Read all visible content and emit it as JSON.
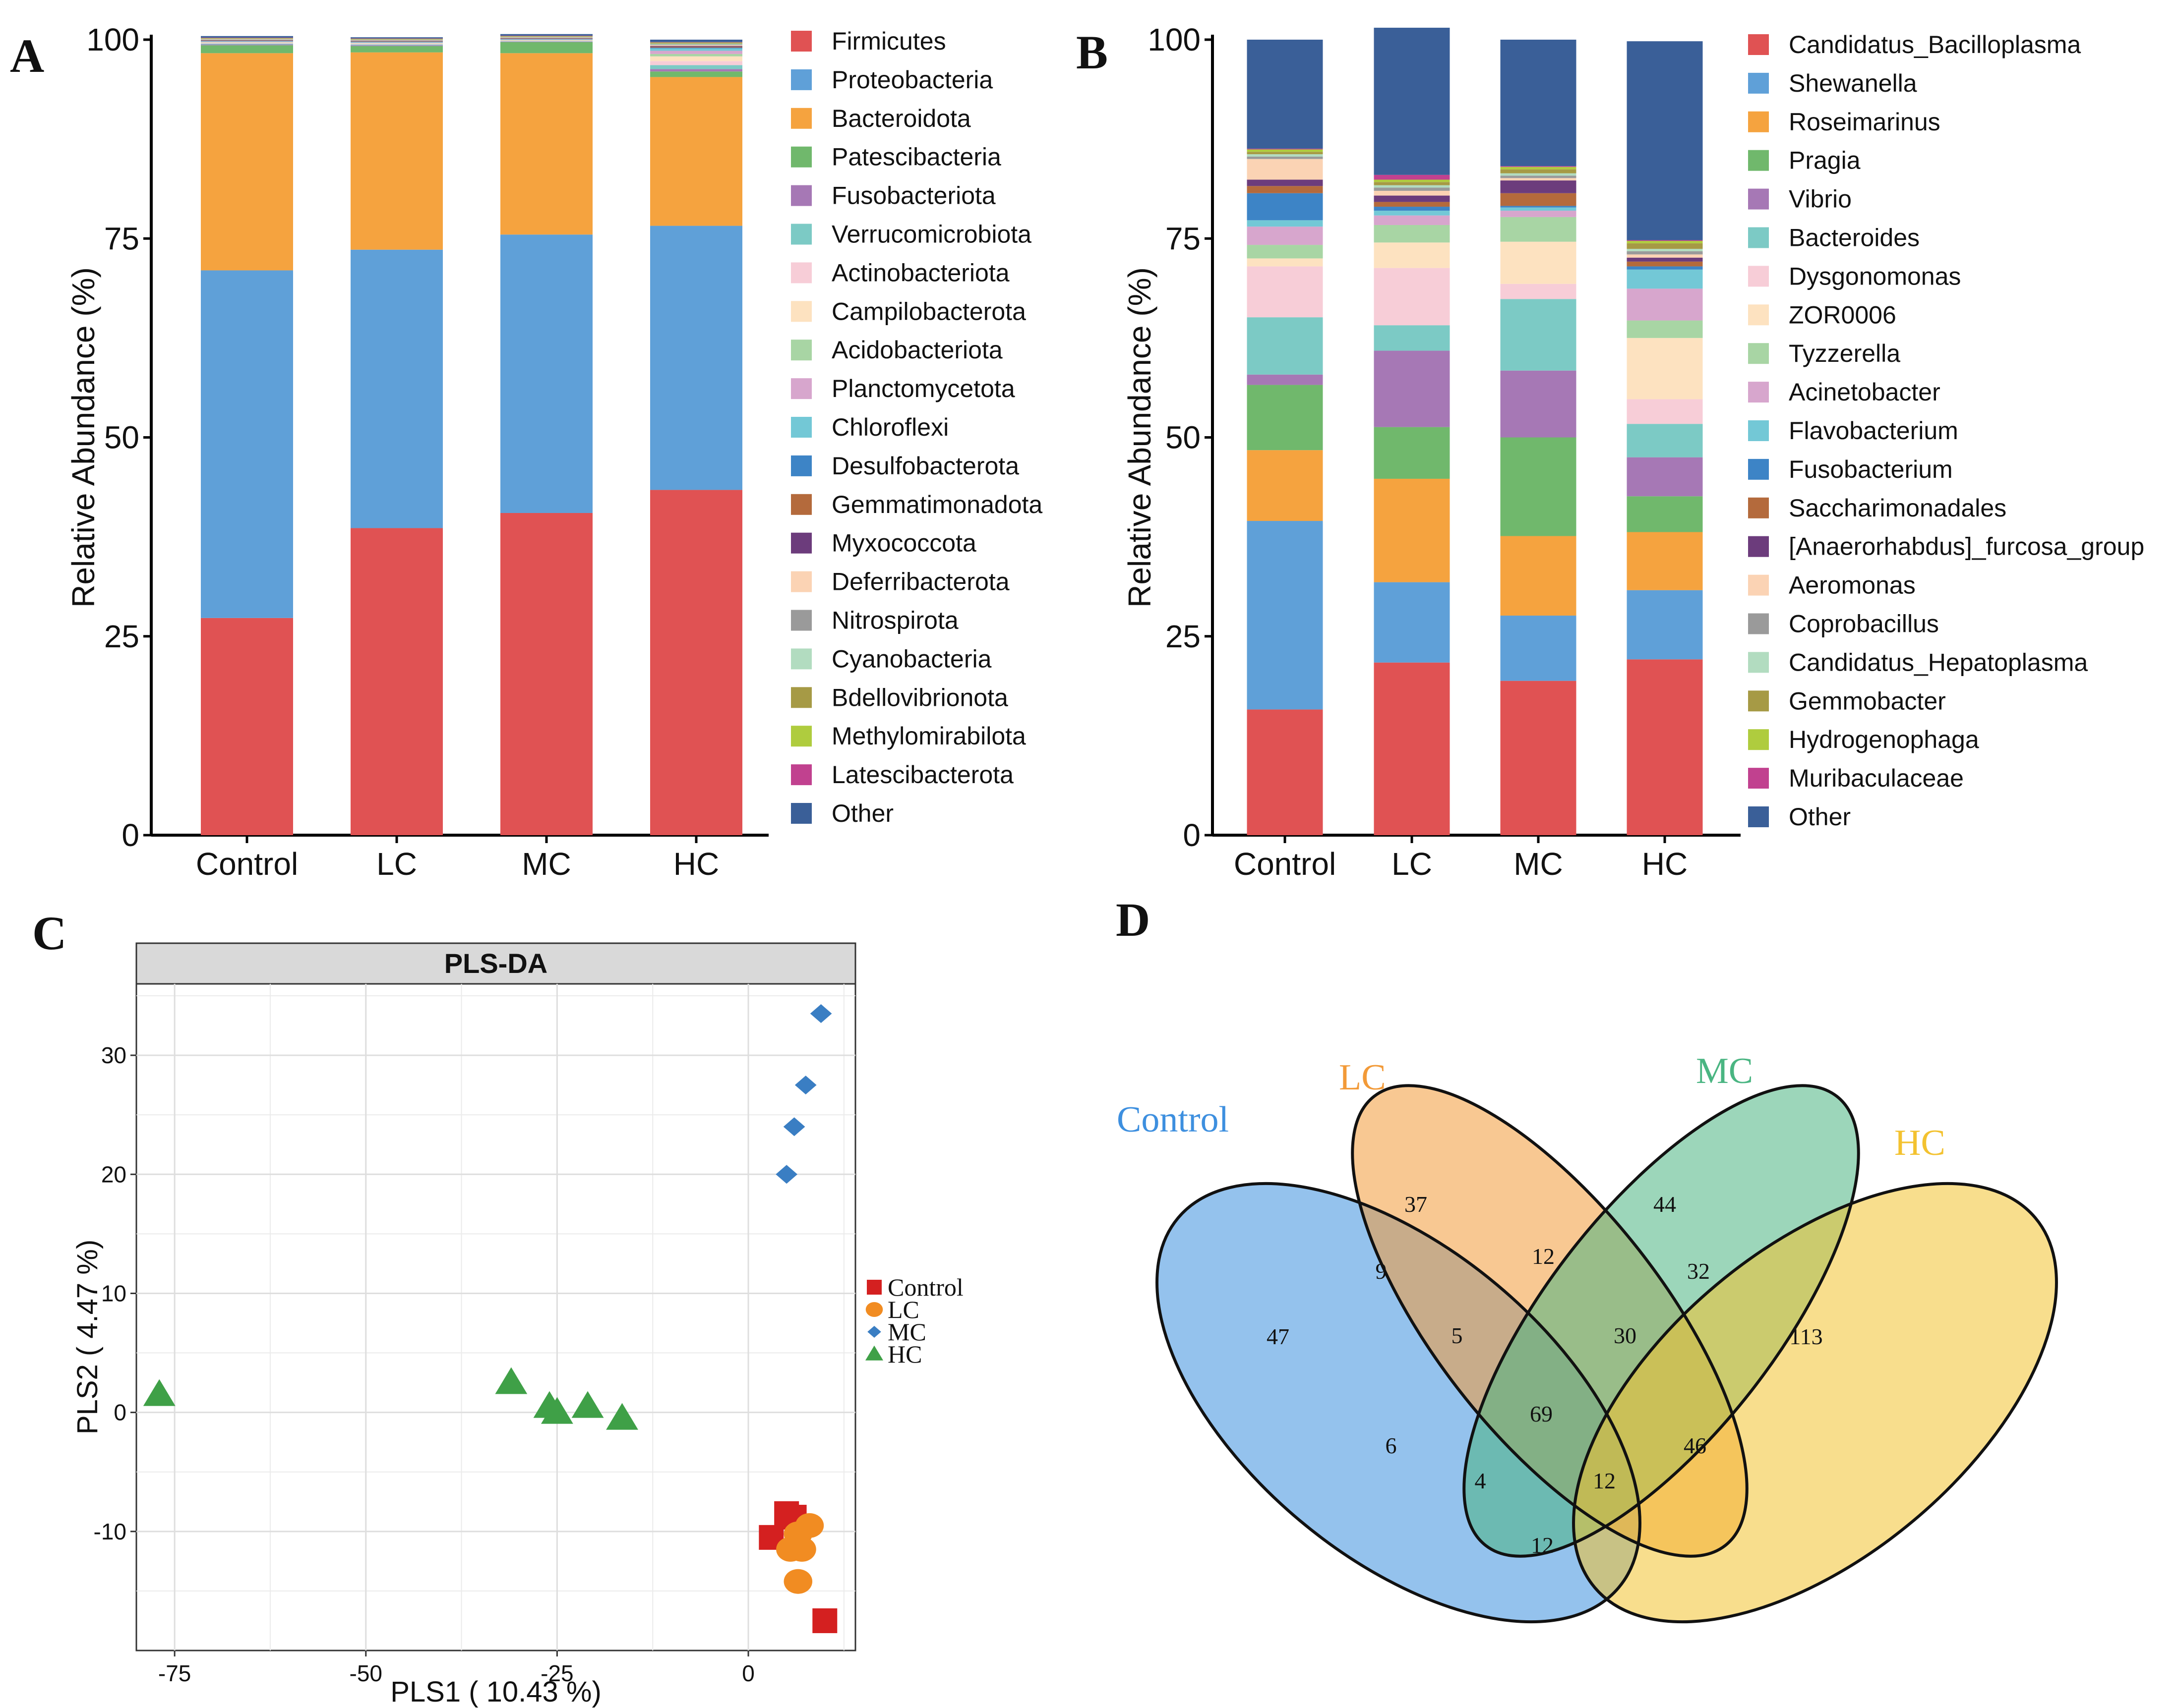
{
  "panels": {
    "A": {
      "letter": "A"
    },
    "B": {
      "letter": "B"
    },
    "C": {
      "letter": "C"
    },
    "D": {
      "letter": "D"
    }
  },
  "colors": {
    "palette": [
      "#E05253",
      "#5FA0D8",
      "#F5A33F",
      "#70B86C",
      "#A678B5",
      "#7CCAC5",
      "#F7CDD7",
      "#FDE2C0",
      "#A8D5A4",
      "#D7A6CD",
      "#73C8D6",
      "#3D84C6",
      "#B46A3C",
      "#6C3C7C",
      "#FBD3B4",
      "#9A9A9A",
      "#B2DCC0",
      "#A69A45",
      "#AFCC3E",
      "#C1418F",
      "#3A5F98"
    ],
    "pls": {
      "Control": "#D42020",
      "LC": "#F18C22",
      "MC": "#3A7EC3",
      "HC": "#3FA047"
    },
    "venn": {
      "Control": "#3D8FDF",
      "LC": "#F29A38",
      "MC": "#4AB582",
      "HC": "#F3C230"
    }
  },
  "chart_data": [
    {
      "id": "A",
      "type": "bar",
      "stacked": true,
      "ylabel": "Relative Abundance (%)",
      "xlabel": "",
      "ylim": [
        0,
        100
      ],
      "yticks": [
        0,
        25,
        50,
        75,
        100
      ],
      "categories": [
        "Control",
        "LC",
        "MC",
        "HC"
      ],
      "series": [
        {
          "name": "Firmicutes",
          "values": [
            27.3,
            38.6,
            40.5,
            43.4
          ]
        },
        {
          "name": "Proteobacteria",
          "values": [
            43.7,
            35.0,
            35.0,
            33.2
          ]
        },
        {
          "name": "Bacteroidota",
          "values": [
            27.3,
            24.8,
            22.8,
            18.7
          ]
        },
        {
          "name": "Patescibacteria",
          "values": [
            1.0,
            0.8,
            1.4,
            0.7
          ]
        },
        {
          "name": "Fusobacteriota",
          "values": [
            0.1,
            0.1,
            0.05,
            0.3
          ]
        },
        {
          "name": "Verrucomicrobiota",
          "values": [
            0.1,
            0.1,
            0.05,
            0.5
          ]
        },
        {
          "name": "Actinobacteriota",
          "values": [
            0.1,
            0.1,
            0.05,
            0.5
          ]
        },
        {
          "name": "Campilobacterota",
          "values": [
            0.05,
            0.05,
            0.05,
            0.6
          ]
        },
        {
          "name": "Acidobacteriota",
          "values": [
            0.05,
            0.05,
            0.05,
            0.3
          ]
        },
        {
          "name": "Planctomycetota",
          "values": [
            0.05,
            0.05,
            0.05,
            0.4
          ]
        },
        {
          "name": "Chloroflexi",
          "values": [
            0.05,
            0.05,
            0.05,
            0.3
          ]
        },
        {
          "name": "Desulfobacterota",
          "values": [
            0.05,
            0.05,
            0.05,
            0.1
          ]
        },
        {
          "name": "Gemmatimonadota",
          "values": [
            0.05,
            0.05,
            0.05,
            0.1
          ]
        },
        {
          "name": "Myxococcota",
          "values": [
            0.05,
            0.05,
            0.05,
            0.1
          ]
        },
        {
          "name": "Deferribacterota",
          "values": [
            0.05,
            0.05,
            0.05,
            0.1
          ]
        },
        {
          "name": "Nitrospirota",
          "values": [
            0.05,
            0.05,
            0.05,
            0.1
          ]
        },
        {
          "name": "Cyanobacteria",
          "values": [
            0.05,
            0.05,
            0.05,
            0.1
          ]
        },
        {
          "name": "Bdellovibrionota",
          "values": [
            0.05,
            0.05,
            0.05,
            0.1
          ]
        },
        {
          "name": "Methylomirabilota",
          "values": [
            0.05,
            0.05,
            0.05,
            0.05
          ]
        },
        {
          "name": "Latescibacterota",
          "values": [
            0.05,
            0.05,
            0.05,
            0.05
          ]
        },
        {
          "name": "Other",
          "values": [
            0.2,
            0.15,
            0.2,
            0.3
          ]
        }
      ],
      "legend": "right"
    },
    {
      "id": "B",
      "type": "bar",
      "stacked": true,
      "ylabel": "Relative Abundance (%)",
      "xlabel": "",
      "ylim": [
        0,
        100
      ],
      "yticks": [
        0,
        25,
        50,
        75,
        100
      ],
      "categories": [
        "Control",
        "LC",
        "MC",
        "HC"
      ],
      "series": [
        {
          "name": "Candidatus_Bacilloplasma",
          "values": [
            15.8,
            21.7,
            19.4,
            22.1
          ]
        },
        {
          "name": "Shewanella",
          "values": [
            23.7,
            10.1,
            8.2,
            8.7
          ]
        },
        {
          "name": "Roseimarinus",
          "values": [
            8.9,
            13.0,
            10.0,
            7.3
          ]
        },
        {
          "name": "Pragia",
          "values": [
            8.2,
            6.5,
            12.4,
            4.5
          ]
        },
        {
          "name": "Vibrio",
          "values": [
            1.3,
            9.6,
            8.4,
            4.9
          ]
        },
        {
          "name": "Bacteroides",
          "values": [
            7.2,
            3.2,
            9.0,
            4.2
          ]
        },
        {
          "name": "Dysgonomonas",
          "values": [
            6.4,
            7.2,
            1.9,
            3.1
          ]
        },
        {
          "name": "ZOR0006",
          "values": [
            1.0,
            3.2,
            5.3,
            7.7
          ]
        },
        {
          "name": "Tyzzerella",
          "values": [
            1.7,
            2.2,
            3.1,
            2.2
          ]
        },
        {
          "name": "Acinetobacter",
          "values": [
            2.3,
            1.2,
            0.8,
            4.0
          ]
        },
        {
          "name": "Flavobacterium",
          "values": [
            0.8,
            0.6,
            0.4,
            2.4
          ]
        },
        {
          "name": "Fusobacterium",
          "values": [
            3.4,
            0.5,
            0.2,
            0.4
          ]
        },
        {
          "name": "Saccharimonadales",
          "values": [
            0.9,
            0.6,
            1.6,
            0.6
          ]
        },
        {
          "name": "[Anaerorhabdus]_furcosa_group",
          "values": [
            0.8,
            0.8,
            1.6,
            0.5
          ]
        },
        {
          "name": "Aeromonas",
          "values": [
            2.6,
            0.6,
            0.3,
            0.4
          ]
        },
        {
          "name": "Coprobacillus",
          "values": [
            0.3,
            0.4,
            0.3,
            0.4
          ]
        },
        {
          "name": "Candidatus_Hepatoplasma",
          "values": [
            0.3,
            0.3,
            0.3,
            0.3
          ]
        },
        {
          "name": "Gemmobacter",
          "values": [
            0.3,
            0.4,
            0.5,
            0.7
          ]
        },
        {
          "name": "Hydrogenophaga",
          "values": [
            0.3,
            0.3,
            0.3,
            0.3
          ]
        },
        {
          "name": "Muribaculaceae",
          "values": [
            0.1,
            0.6,
            0.1,
            0.1
          ]
        },
        {
          "name": "Other",
          "values": [
            13.7,
            18.5,
            15.9,
            25.0
          ]
        }
      ],
      "legend": "right"
    },
    {
      "id": "C",
      "type": "scatter",
      "title": "PLS-DA",
      "xlabel": "PLS1  ( 10.43 %)",
      "ylabel": "PLS2  ( 4.47 %)",
      "xlim": [
        -80,
        14
      ],
      "ylim": [
        -20,
        36
      ],
      "xticks": [
        -75,
        -50,
        -25,
        0
      ],
      "yticks": [
        -10,
        0,
        10,
        20,
        30
      ],
      "grid": true,
      "legend": "right",
      "series": [
        {
          "name": "Control",
          "marker": "square",
          "points": [
            [
              5,
              -8.5
            ],
            [
              6,
              -8.8
            ],
            [
              3,
              -10.5
            ],
            [
              10,
              -17.5
            ]
          ]
        },
        {
          "name": "LC",
          "marker": "circle",
          "points": [
            [
              8,
              -9.5
            ],
            [
              6.5,
              -10.2
            ],
            [
              5.5,
              -11.5
            ],
            [
              7,
              -11.5
            ],
            [
              6.5,
              -14.2
            ]
          ]
        },
        {
          "name": "MC",
          "marker": "diamond",
          "points": [
            [
              9.5,
              33.5
            ],
            [
              7.5,
              27.5
            ],
            [
              6,
              24
            ],
            [
              5,
              20
            ]
          ]
        },
        {
          "name": "HC",
          "marker": "triangle",
          "points": [
            [
              -77,
              1.5
            ],
            [
              -31,
              2.5
            ],
            [
              -26,
              0.5
            ],
            [
              -25,
              0
            ],
            [
              -21,
              0.5
            ],
            [
              -16.5,
              -0.5
            ]
          ]
        }
      ]
    },
    {
      "id": "D",
      "type": "venn",
      "sets": [
        "Control",
        "LC",
        "MC",
        "HC"
      ],
      "regions": [
        {
          "sets": [
            "Control"
          ],
          "value": 47
        },
        {
          "sets": [
            "LC"
          ],
          "value": 37
        },
        {
          "sets": [
            "MC"
          ],
          "value": 44
        },
        {
          "sets": [
            "HC"
          ],
          "value": 113
        },
        {
          "sets": [
            "Control",
            "LC"
          ],
          "value": 9
        },
        {
          "sets": [
            "LC",
            "MC"
          ],
          "value": 12
        },
        {
          "sets": [
            "MC",
            "HC"
          ],
          "value": 32
        },
        {
          "sets": [
            "Control",
            "LC",
            "MC"
          ],
          "value": 5
        },
        {
          "sets": [
            "LC",
            "MC",
            "HC"
          ],
          "value": 30
        },
        {
          "sets": [
            "Control",
            "LC",
            "MC",
            "HC"
          ],
          "value": 69
        },
        {
          "sets": [
            "Control",
            "MC"
          ],
          "value": 6
        },
        {
          "sets": [
            "Control",
            "MC",
            "HC"
          ],
          "value": 4
        },
        {
          "sets": [
            "Control",
            "LC",
            "HC"
          ],
          "value": 12
        },
        {
          "sets": [
            "LC",
            "HC"
          ],
          "value": 46
        },
        {
          "sets": [
            "Control",
            "HC"
          ],
          "value": 12
        }
      ]
    }
  ]
}
